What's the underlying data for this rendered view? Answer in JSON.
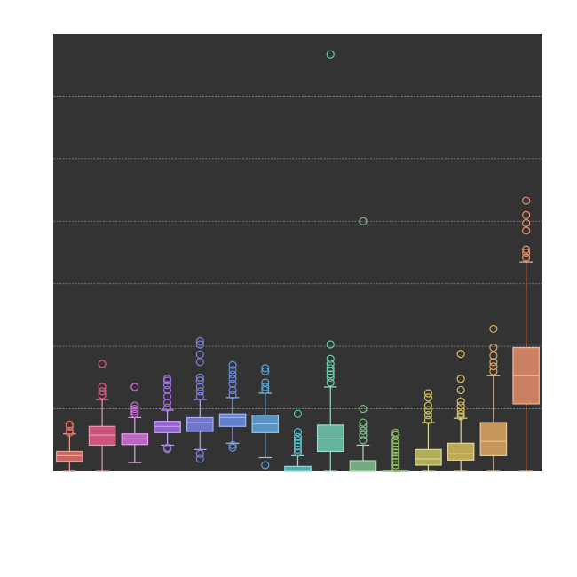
{
  "chart_data": {
    "type": "box",
    "title": "",
    "xlabel": "",
    "ylabel": "",
    "ylim": [
      0,
      7
    ],
    "grid": true,
    "background": "#333333",
    "grid_color": "#8c8c8c",
    "series": [
      {
        "color": "#e27064",
        "q1": 0.16,
        "median": 0.25,
        "q3": 0.32,
        "whisker_low": 0.0,
        "whisker_high": 0.6,
        "outliers": [
          0.62,
          0.65,
          0.72,
          0.75
        ]
      },
      {
        "color": "#e65c8a",
        "q1": 0.42,
        "median": 0.58,
        "q3": 0.72,
        "whisker_low": 0.0,
        "whisker_high": 1.15,
        "outliers": [
          1.22,
          1.28,
          1.35,
          1.72
        ]
      },
      {
        "color": "#d66fe0",
        "q1": 0.43,
        "median": 0.52,
        "q3": 0.6,
        "whisker_low": 0.14,
        "whisker_high": 0.86,
        "outliers": [
          0.92,
          0.96,
          1.0,
          1.05,
          1.35
        ]
      },
      {
        "color": "#a46fe8",
        "q1": 0.62,
        "median": 0.72,
        "q3": 0.8,
        "whisker_low": 0.42,
        "whisker_high": 0.98,
        "outliers": [
          0.36,
          0.38,
          1.02,
          1.1,
          1.2,
          1.3,
          1.38,
          1.45,
          1.48
        ]
      },
      {
        "color": "#7a82e6",
        "q1": 0.64,
        "median": 0.78,
        "q3": 0.86,
        "whisker_low": 0.35,
        "whisker_high": 1.15,
        "outliers": [
          0.2,
          0.28,
          1.2,
          1.28,
          1.35,
          1.45,
          1.5,
          1.75,
          1.87,
          2.03,
          2.08
        ]
      },
      {
        "color": "#6c8fe6",
        "q1": 0.72,
        "median": 0.86,
        "q3": 0.92,
        "whisker_low": 0.45,
        "whisker_high": 1.18,
        "outliers": [
          0.38,
          0.42,
          1.22,
          1.3,
          1.4,
          1.48,
          1.55,
          1.62,
          1.7
        ]
      },
      {
        "color": "#5ea6d9",
        "q1": 0.62,
        "median": 0.76,
        "q3": 0.9,
        "whisker_low": 0.22,
        "whisker_high": 1.25,
        "outliers": [
          0.1,
          1.3,
          1.35,
          1.42,
          1.6,
          1.65
        ]
      },
      {
        "color": "#4fc4cc",
        "q1": 0.0,
        "median": 0.0,
        "q3": 0.08,
        "whisker_low": 0.0,
        "whisker_high": 0.25,
        "outliers": [
          0.3,
          0.35,
          0.4,
          0.45,
          0.5,
          0.55,
          0.63,
          0.92
        ]
      },
      {
        "color": "#6ccab0",
        "q1": 0.32,
        "median": 0.52,
        "q3": 0.74,
        "whisker_low": 0.0,
        "whisker_high": 1.35,
        "outliers": [
          1.42,
          1.5,
          1.55,
          1.6,
          1.65,
          1.72,
          1.8,
          2.03,
          6.67
        ]
      },
      {
        "color": "#83c08c",
        "q1": 0.0,
        "median": 0.0,
        "q3": 0.17,
        "whisker_low": 0.0,
        "whisker_high": 0.42,
        "outliers": [
          0.5,
          0.58,
          0.65,
          0.72,
          0.78,
          1.0,
          4.0
        ]
      },
      {
        "color": "#8cc25e",
        "q1": 0.0,
        "median": 0.0,
        "q3": 0.0,
        "whisker_low": 0.0,
        "whisker_high": 0.0,
        "outliers": [
          0.05,
          0.1,
          0.15,
          0.2,
          0.25,
          0.3,
          0.35,
          0.4,
          0.45,
          0.5,
          0.58,
          0.62
        ]
      },
      {
        "color": "#c9c45e",
        "q1": 0.1,
        "median": 0.2,
        "q3": 0.35,
        "whisker_low": 0.0,
        "whisker_high": 0.78,
        "outliers": [
          0.82,
          0.9,
          0.98,
          1.05,
          1.18,
          1.25
        ]
      },
      {
        "color": "#d6bf5c",
        "q1": 0.18,
        "median": 0.28,
        "q3": 0.45,
        "whisker_low": 0.0,
        "whisker_high": 0.85,
        "outliers": [
          0.88,
          0.92,
          0.98,
          1.05,
          1.12,
          1.3,
          1.48,
          1.88
        ]
      },
      {
        "color": "#e0a863",
        "q1": 0.25,
        "median": 0.48,
        "q3": 0.78,
        "whisker_low": 0.0,
        "whisker_high": 1.53,
        "outliers": [
          1.6,
          1.68,
          1.75,
          1.85,
          1.98,
          2.28
        ]
      },
      {
        "color": "#e88f6c",
        "q1": 1.08,
        "median": 1.53,
        "q3": 1.98,
        "whisker_low": 0.0,
        "whisker_high": 3.35,
        "outliers": [
          3.42,
          3.5,
          3.55,
          3.85,
          3.97,
          4.1,
          4.33
        ]
      }
    ]
  }
}
